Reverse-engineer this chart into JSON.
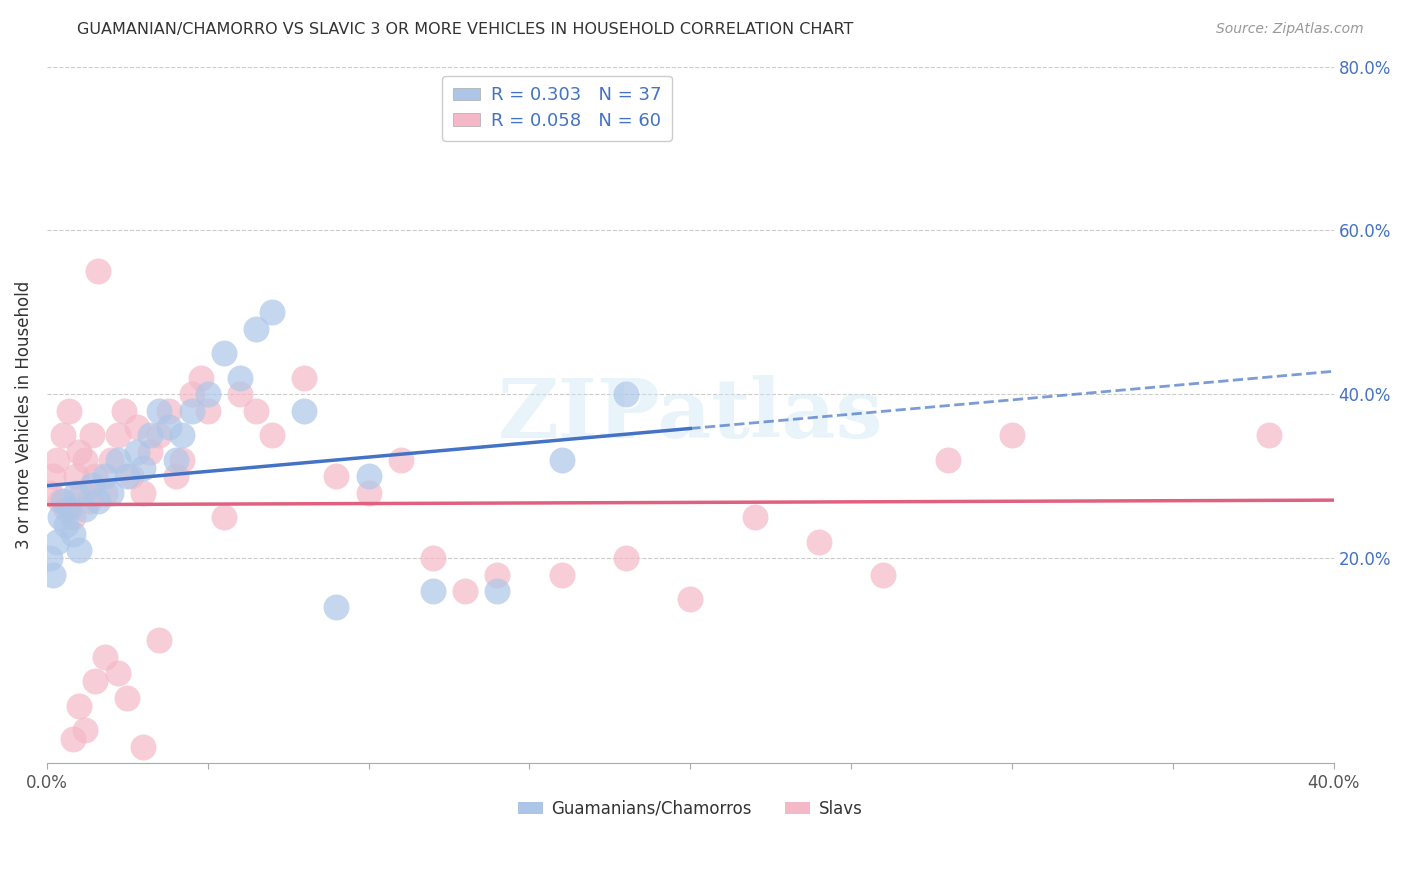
{
  "title": "GUAMANIAN/CHAMORRO VS SLAVIC 3 OR MORE VEHICLES IN HOUSEHOLD CORRELATION CHART",
  "source": "Source: ZipAtlas.com",
  "ylabel": "3 or more Vehicles in Household",
  "xlim": [
    0.0,
    0.4
  ],
  "ylim": [
    -0.05,
    0.8
  ],
  "xtick_vals": [
    0.0,
    0.05,
    0.1,
    0.15,
    0.2,
    0.25,
    0.3,
    0.35,
    0.4
  ],
  "xtick_labels": [
    "0.0%",
    "",
    "",
    "",
    "",
    "",
    "",
    "",
    "40.0%"
  ],
  "ytick_vals": [
    0.2,
    0.4,
    0.6,
    0.8
  ],
  "ytick_labels": [
    "20.0%",
    "40.0%",
    "60.0%",
    "80.0%"
  ],
  "series1_color": "#adc6e8",
  "series2_color": "#f4b8c8",
  "line1_color": "#4472c4",
  "line2_color": "#e06080",
  "guamanian_x": [
    0.001,
    0.002,
    0.003,
    0.004,
    0.005,
    0.006,
    0.007,
    0.008,
    0.009,
    0.01,
    0.012,
    0.014,
    0.016,
    0.018,
    0.02,
    0.022,
    0.025,
    0.028,
    0.03,
    0.032,
    0.035,
    0.038,
    0.04,
    0.042,
    0.045,
    0.05,
    0.055,
    0.06,
    0.065,
    0.07,
    0.08,
    0.09,
    0.1,
    0.12,
    0.14,
    0.16,
    0.18
  ],
  "guamanian_y": [
    0.2,
    0.18,
    0.22,
    0.25,
    0.27,
    0.24,
    0.26,
    0.23,
    0.28,
    0.21,
    0.26,
    0.29,
    0.27,
    0.3,
    0.28,
    0.32,
    0.3,
    0.33,
    0.31,
    0.35,
    0.38,
    0.36,
    0.32,
    0.35,
    0.38,
    0.4,
    0.45,
    0.42,
    0.48,
    0.5,
    0.38,
    0.14,
    0.3,
    0.16,
    0.16,
    0.32,
    0.4
  ],
  "slavic_x": [
    0.001,
    0.002,
    0.003,
    0.004,
    0.005,
    0.006,
    0.007,
    0.008,
    0.009,
    0.01,
    0.011,
    0.012,
    0.013,
    0.014,
    0.015,
    0.016,
    0.018,
    0.02,
    0.022,
    0.024,
    0.026,
    0.028,
    0.03,
    0.032,
    0.035,
    0.038,
    0.04,
    0.042,
    0.045,
    0.048,
    0.05,
    0.055,
    0.06,
    0.065,
    0.07,
    0.08,
    0.09,
    0.1,
    0.11,
    0.12,
    0.13,
    0.14,
    0.16,
    0.18,
    0.2,
    0.22,
    0.24,
    0.26,
    0.28,
    0.3,
    0.008,
    0.01,
    0.012,
    0.015,
    0.018,
    0.022,
    0.025,
    0.03,
    0.035,
    0.38
  ],
  "slavic_y": [
    0.28,
    0.3,
    0.32,
    0.27,
    0.35,
    0.26,
    0.38,
    0.25,
    0.3,
    0.33,
    0.28,
    0.32,
    0.27,
    0.35,
    0.3,
    0.55,
    0.28,
    0.32,
    0.35,
    0.38,
    0.3,
    0.36,
    0.28,
    0.33,
    0.35,
    0.38,
    0.3,
    0.32,
    0.4,
    0.42,
    0.38,
    0.25,
    0.4,
    0.38,
    0.35,
    0.42,
    0.3,
    0.28,
    0.32,
    0.2,
    0.16,
    0.18,
    0.18,
    0.2,
    0.15,
    0.25,
    0.22,
    0.18,
    0.32,
    0.35,
    -0.02,
    0.02,
    -0.01,
    0.05,
    0.08,
    0.06,
    0.03,
    -0.03,
    0.1,
    0.35
  ],
  "watermark_text": "ZIPatlas",
  "legend_label1": "R = 0.303   N = 37",
  "legend_label2": "R = 0.058   N = 60",
  "bottom_legend1": "Guamanians/Chamorros",
  "bottom_legend2": "Slavs"
}
